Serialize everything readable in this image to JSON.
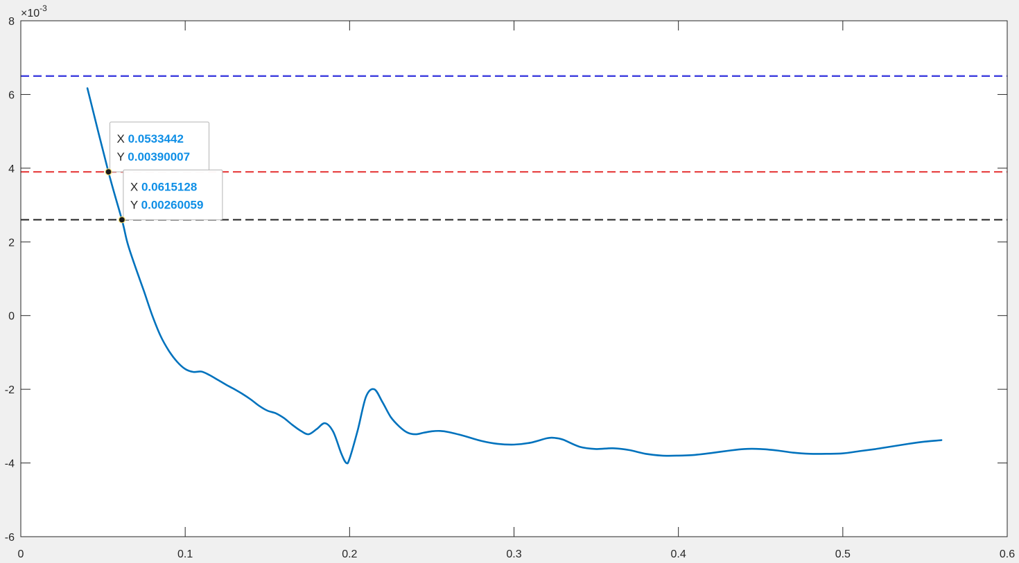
{
  "chart_data": {
    "type": "line",
    "title": "",
    "xlabel": "",
    "ylabel": "",
    "xlim": [
      0,
      0.6
    ],
    "ylim": [
      -0.006,
      0.008
    ],
    "y_exponent_label": {
      "base": "×10",
      "exponent": "-3"
    },
    "x_ticks": [
      "0",
      "0.1",
      "0.2",
      "0.3",
      "0.4",
      "0.5",
      "0.6"
    ],
    "x_tick_values": [
      0,
      0.1,
      0.2,
      0.3,
      0.4,
      0.5,
      0.6
    ],
    "y_ticks": [
      "-6",
      "-4",
      "-2",
      "0",
      "2",
      "4",
      "6",
      "8"
    ],
    "y_tick_values": [
      -0.006,
      -0.004,
      -0.002,
      0,
      0.002,
      0.004,
      0.006,
      0.008
    ],
    "grid": false,
    "series": [
      {
        "color": "#0072bd",
        "x": [
          0.0405,
          0.0533,
          0.0615,
          0.065,
          0.07,
          0.075,
          0.08,
          0.085,
          0.09,
          0.095,
          0.1,
          0.105,
          0.11,
          0.115,
          0.12,
          0.125,
          0.13,
          0.135,
          0.14,
          0.145,
          0.15,
          0.155,
          0.16,
          0.165,
          0.17,
          0.175,
          0.18,
          0.185,
          0.19,
          0.195,
          0.198,
          0.2,
          0.205,
          0.21,
          0.215,
          0.22,
          0.225,
          0.23,
          0.235,
          0.24,
          0.245,
          0.25,
          0.255,
          0.26,
          0.27,
          0.28,
          0.29,
          0.3,
          0.31,
          0.32,
          0.325,
          0.33,
          0.34,
          0.35,
          0.36,
          0.37,
          0.38,
          0.39,
          0.4,
          0.41,
          0.42,
          0.43,
          0.44,
          0.45,
          0.46,
          0.47,
          0.48,
          0.49,
          0.5,
          0.51,
          0.52,
          0.53,
          0.54,
          0.55,
          0.56
        ],
        "y": [
          0.00617,
          0.0039,
          0.0026,
          0.00195,
          0.00128,
          0.00065,
          0.0,
          -0.00055,
          -0.00095,
          -0.00125,
          -0.00145,
          -0.00153,
          -0.00152,
          -0.00162,
          -0.00175,
          -0.00188,
          -0.002,
          -0.00213,
          -0.00228,
          -0.00245,
          -0.00258,
          -0.00265,
          -0.00278,
          -0.00296,
          -0.00312,
          -0.00322,
          -0.00308,
          -0.00292,
          -0.00315,
          -0.00375,
          -0.004,
          -0.00388,
          -0.0031,
          -0.0022,
          -0.002,
          -0.00235,
          -0.00275,
          -0.003,
          -0.00317,
          -0.00322,
          -0.00318,
          -0.00314,
          -0.00313,
          -0.00316,
          -0.00327,
          -0.0034,
          -0.00348,
          -0.0035,
          -0.00345,
          -0.00333,
          -0.00332,
          -0.00337,
          -0.00356,
          -0.00362,
          -0.0036,
          -0.00365,
          -0.00375,
          -0.0038,
          -0.0038,
          -0.00378,
          -0.00373,
          -0.00367,
          -0.00362,
          -0.00362,
          -0.00366,
          -0.00372,
          -0.00375,
          -0.00375,
          -0.00374,
          -0.00368,
          -0.00362,
          -0.00355,
          -0.00348,
          -0.00342,
          -0.00338
        ]
      }
    ],
    "reference_lines": [
      {
        "y": 0.0065,
        "color": "#3c3cde",
        "style": "dashed"
      },
      {
        "y": 0.0039,
        "color": "#e84c4c",
        "style": "dashed"
      },
      {
        "y": 0.0026,
        "color": "#404040",
        "style": "dashed"
      }
    ],
    "datatips": [
      {
        "x": 0.0533442,
        "y": 0.00390007,
        "x_label": "X",
        "y_label": "Y",
        "x_text": "0.0533442",
        "y_text": "0.00390007"
      },
      {
        "x": 0.0615128,
        "y": 0.00260059,
        "x_label": "X",
        "y_label": "Y",
        "x_text": "0.0615128",
        "y_text": "0.00260059"
      }
    ]
  }
}
